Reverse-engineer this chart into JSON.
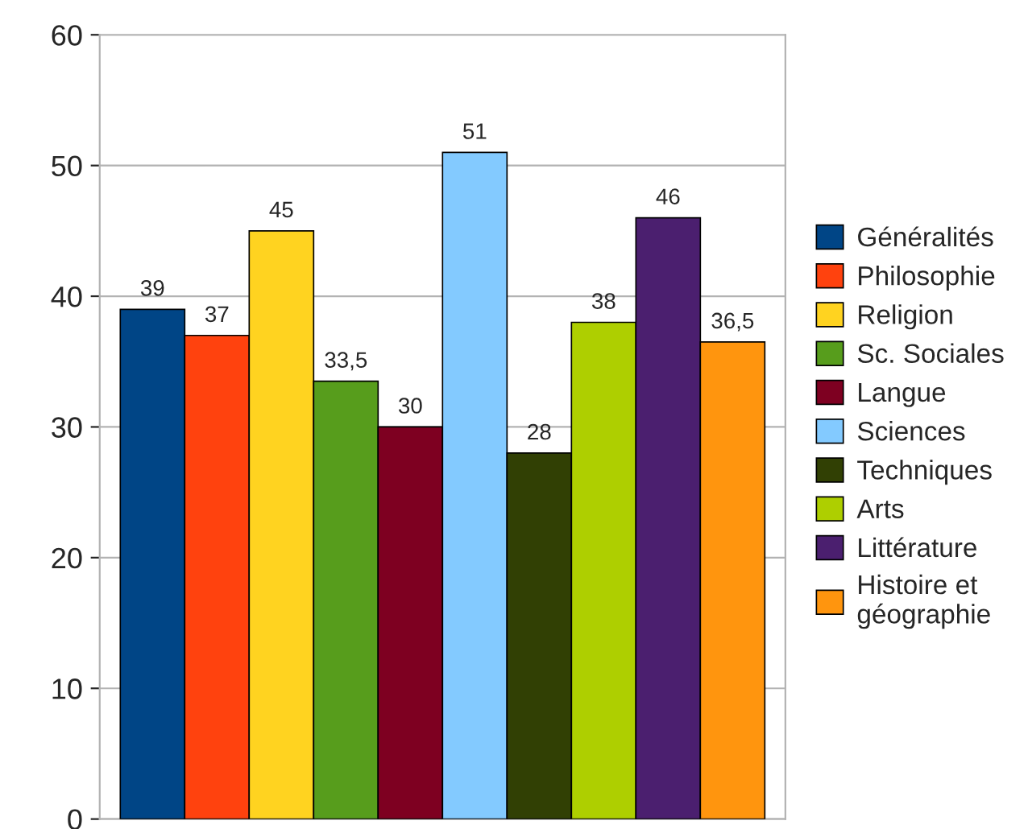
{
  "chart_data": {
    "type": "bar",
    "categories": [
      null
    ],
    "series": [
      {
        "name": "Généralités",
        "color": "#004586",
        "values": [
          39
        ],
        "value_labels": [
          "39"
        ]
      },
      {
        "name": "Philosophie",
        "color": "#ff420e",
        "values": [
          37
        ],
        "value_labels": [
          "37"
        ]
      },
      {
        "name": "Religion",
        "color": "#ffd320",
        "values": [
          45
        ],
        "value_labels": [
          "45"
        ]
      },
      {
        "name": "Sc. Sociales",
        "color": "#579d1c",
        "values": [
          33.5
        ],
        "value_labels": [
          "33,5"
        ]
      },
      {
        "name": "Langue",
        "color": "#7e0021",
        "values": [
          30
        ],
        "value_labels": [
          "30"
        ]
      },
      {
        "name": "Sciences",
        "color": "#83caff",
        "values": [
          51
        ],
        "value_labels": [
          "51"
        ]
      },
      {
        "name": "Techniques",
        "color": "#314004",
        "values": [
          28
        ],
        "value_labels": [
          "28"
        ]
      },
      {
        "name": "Arts",
        "color": "#aecf00",
        "values": [
          38
        ],
        "value_labels": [
          "38"
        ]
      },
      {
        "name": "Littérature",
        "color": "#4b1f6f",
        "values": [
          46
        ],
        "value_labels": [
          "46"
        ]
      },
      {
        "name": "Histoire et\ngéographie",
        "color": "#ff950e",
        "values": [
          36.5
        ],
        "value_labels": [
          "36,5"
        ]
      }
    ],
    "ylim": [
      0,
      60
    ],
    "yticks": [
      0,
      10,
      20,
      30,
      40,
      50,
      60
    ],
    "grid": "y",
    "legend": "right"
  }
}
